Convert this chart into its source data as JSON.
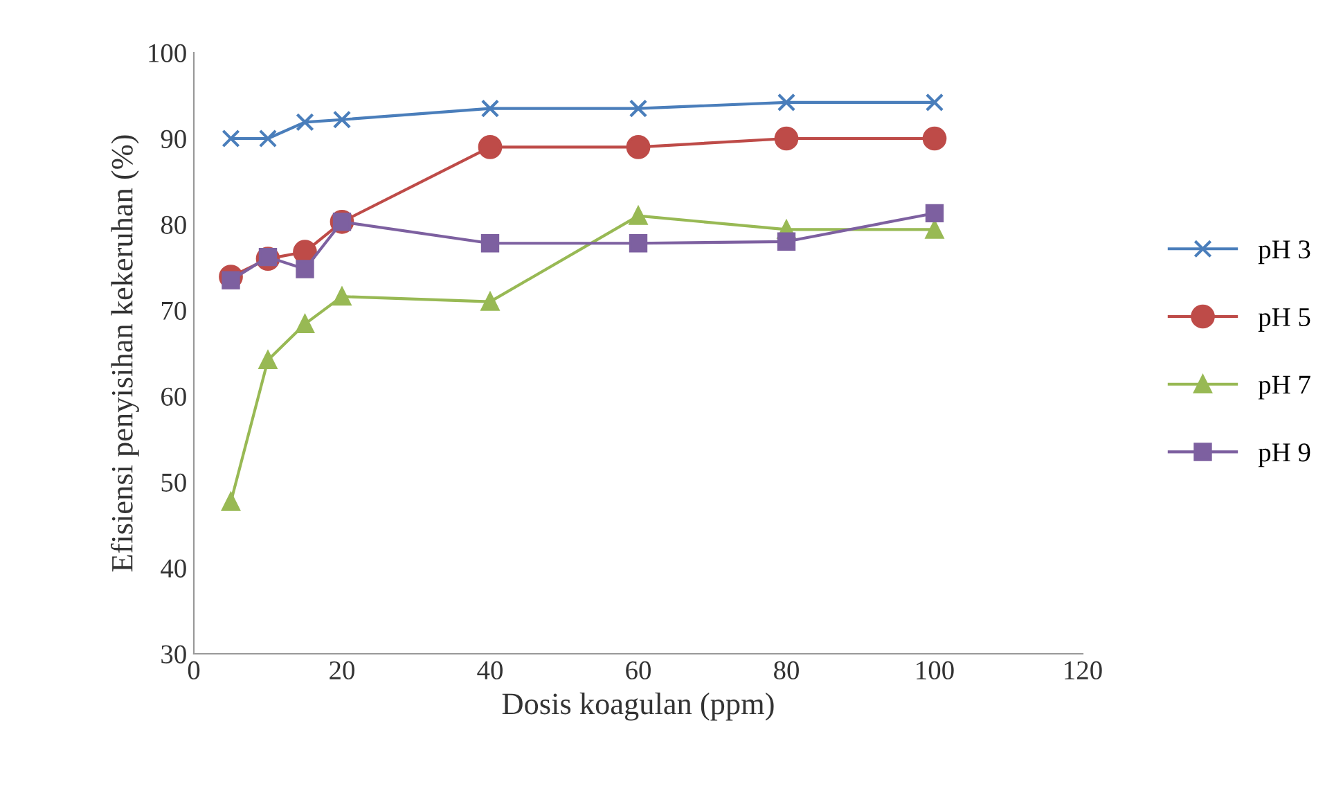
{
  "chart_data": {
    "type": "line",
    "xlabel": "Dosis koagulan (ppm)",
    "ylabel": "Efisiensi penyisihan kekeruhan (%)",
    "x": [
      5,
      10,
      15,
      20,
      40,
      60,
      80,
      100
    ],
    "series": [
      {
        "name": "pH 3",
        "color": "#4a7ebb",
        "marker": "cross",
        "values": [
          90,
          90,
          91.9,
          92.2,
          93.5,
          93.5,
          94.2,
          94.2
        ]
      },
      {
        "name": "pH 5",
        "color": "#be4b48",
        "marker": "circle",
        "values": [
          73.9,
          76,
          76.8,
          80.3,
          89,
          89,
          90,
          90
        ]
      },
      {
        "name": "pH 7",
        "color": "#98b954",
        "marker": "triangle",
        "values": [
          47.7,
          64.2,
          68.4,
          71.6,
          71,
          81,
          79.4,
          79.4
        ]
      },
      {
        "name": "pH 9",
        "color": "#7d60a0",
        "marker": "square",
        "values": [
          73.5,
          76.2,
          74.8,
          80.3,
          77.8,
          77.8,
          78,
          81.3
        ]
      }
    ],
    "xlim": [
      0,
      120
    ],
    "xticks": [
      0,
      20,
      40,
      60,
      80,
      100,
      120
    ],
    "ylim": [
      30,
      100
    ],
    "yticks": [
      30,
      40,
      50,
      60,
      70,
      80,
      90,
      100
    ],
    "grid": false,
    "legend": "right",
    "line_style": "solid"
  }
}
